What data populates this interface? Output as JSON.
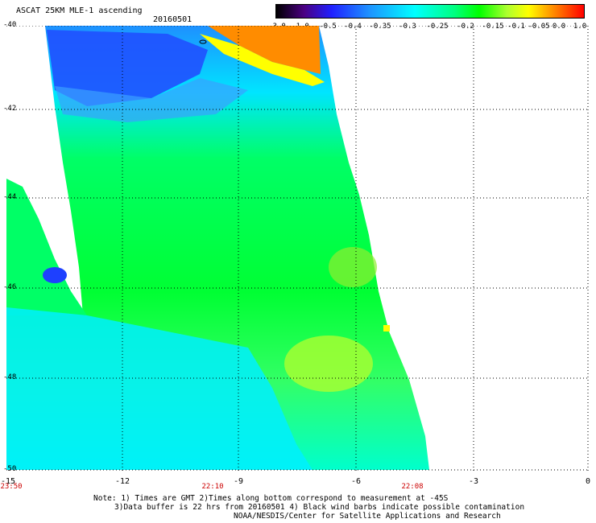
{
  "header": {
    "title": "ASCAT 25KM MLE-1 ascending",
    "date": "20160501"
  },
  "colorbar": {
    "labels": [
      "-3.0",
      "-1.0",
      "-0.5",
      "-0.4",
      "-0.35",
      "-0.3",
      "-0.25",
      "-0.2",
      "-0.15",
      "-0.1",
      "-0.05",
      "0.0",
      "1.0"
    ],
    "colors": [
      "#000000",
      "#4b0082",
      "#2020ff",
      "#1e90ff",
      "#00ffff",
      "#00ff7f",
      "#00ff00",
      "#adff2f",
      "#ffff00",
      "#ff8c00",
      "#ff0000"
    ]
  },
  "map": {
    "lat_labels": [
      "-40",
      "-42",
      "-44",
      "-46",
      "-48",
      "-50"
    ],
    "lon_labels": [
      "-15",
      "-12",
      "-9",
      "-6",
      "-3",
      "0"
    ],
    "times": [
      "23:50",
      "22:10",
      "22:08"
    ],
    "grid": true
  },
  "notes": {
    "line1": "Note: 1) Times are GMT 2)Times along bottom correspond to measurement at -45S",
    "line2": "3)Data buffer is 22 hrs from 20160501 4) Black wind barbs indicate possible contamination",
    "line3": "NOAA/NESDIS/Center for Satellite Applications and Research"
  }
}
